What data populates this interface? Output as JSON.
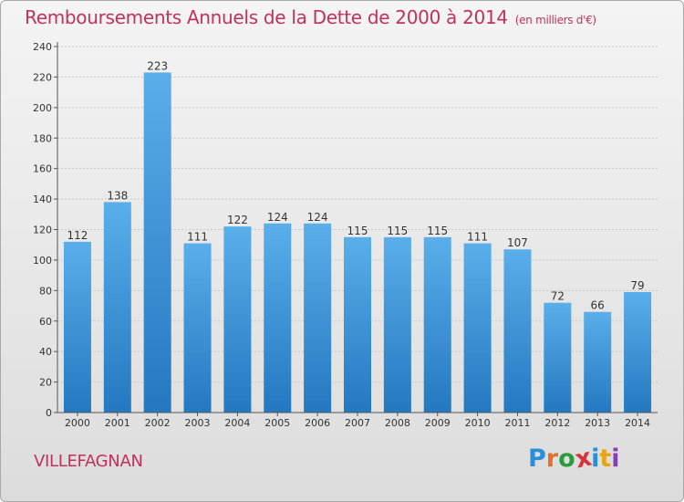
{
  "title": "Remboursements Annuels de la Dette de 2000 à 2014",
  "unit": "(en milliers d'€)",
  "commune": "VILLEFAGNAN",
  "logo": {
    "letters": [
      "P",
      "r",
      "o",
      "x",
      "i",
      "t",
      "i"
    ],
    "colors": [
      "#2a8fd6",
      "#e0702a",
      "#2a9b3a",
      "#d9333a",
      "#2a8fd6",
      "#e8a317",
      "#8a3fb0"
    ]
  },
  "colors": {
    "bar_top": "#5aaeea",
    "bar_bottom": "#2478c0",
    "title": "#c2315d"
  },
  "chart_data": {
    "type": "bar",
    "title": "Remboursements Annuels de la Dette de 2000 à 2014",
    "xlabel": "",
    "ylabel": "",
    "categories": [
      "2000",
      "2001",
      "2002",
      "2003",
      "2004",
      "2005",
      "2006",
      "2007",
      "2008",
      "2009",
      "2010",
      "2011",
      "2012",
      "2013",
      "2014"
    ],
    "values": [
      112,
      138,
      223,
      111,
      122,
      124,
      124,
      115,
      115,
      115,
      111,
      107,
      72,
      66,
      79
    ],
    "ylim": [
      0,
      240
    ],
    "yticks": [
      0,
      20,
      40,
      60,
      80,
      100,
      120,
      140,
      160,
      180,
      200,
      220,
      240
    ],
    "grid": true
  }
}
